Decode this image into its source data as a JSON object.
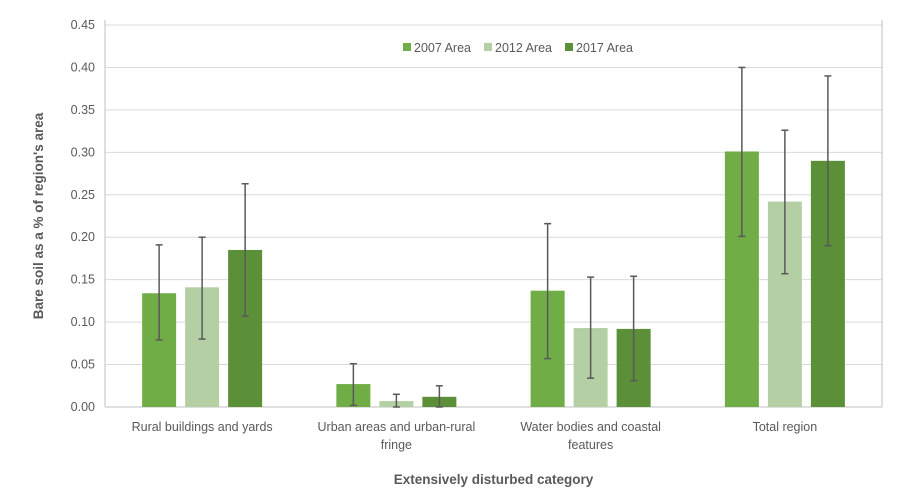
{
  "chart_data": {
    "type": "bar",
    "title": "",
    "xlabel": "Extensively disturbed category",
    "ylabel": "Bare soil as a % of region's area",
    "ylim": [
      0,
      0.45
    ],
    "yticks": [
      "0.00",
      "0.05",
      "0.10",
      "0.15",
      "0.20",
      "0.25",
      "0.30",
      "0.35",
      "0.40",
      "0.45"
    ],
    "grid": true,
    "legend_position": "top",
    "categories": [
      [
        "Rural buildings and yards"
      ],
      [
        "Urban areas and urban-rural",
        "fringe"
      ],
      [
        "Water bodies and coastal",
        "features"
      ],
      [
        "Total region"
      ]
    ],
    "series": [
      {
        "name": "2007 Area",
        "color": "#70AD47",
        "values": [
          0.134,
          0.027,
          0.137,
          0.301
        ],
        "error_low": [
          0.079,
          0.002,
          0.057,
          0.201
        ],
        "error_high": [
          0.191,
          0.051,
          0.216,
          0.4
        ]
      },
      {
        "name": "2012 Area",
        "color": "#B5CFA5",
        "values": [
          0.141,
          0.007,
          0.093,
          0.242
        ],
        "error_low": [
          0.08,
          0.0,
          0.034,
          0.157
        ],
        "error_high": [
          0.2,
          0.015,
          0.153,
          0.326
        ]
      },
      {
        "name": "2017 Area",
        "color": "#5B8F38",
        "values": [
          0.185,
          0.012,
          0.092,
          0.29
        ],
        "error_low": [
          0.107,
          0.0,
          0.031,
          0.19
        ],
        "error_high": [
          0.263,
          0.025,
          0.154,
          0.39
        ]
      }
    ]
  }
}
